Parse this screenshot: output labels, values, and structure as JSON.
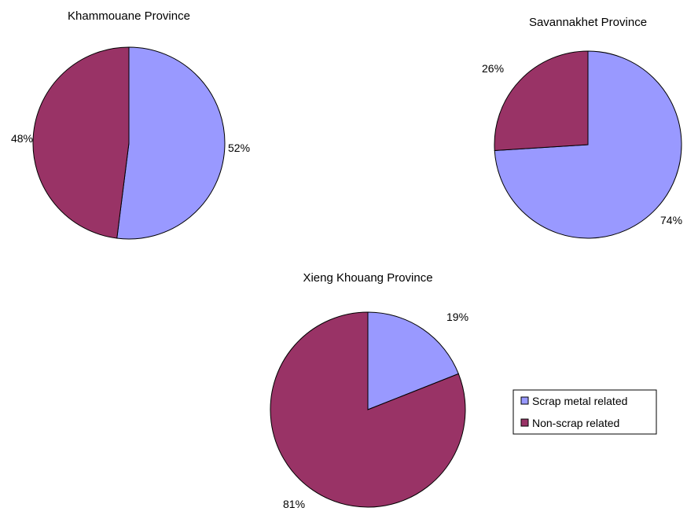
{
  "colors": {
    "scrap": "#9999ff",
    "non_scrap": "#993366",
    "outline": "#000000"
  },
  "legend": {
    "placement": "bottom-right",
    "items": [
      {
        "label": "Scrap metal related",
        "color": "#9999ff"
      },
      {
        "label": "Non-scrap related",
        "color": "#993366"
      }
    ]
  },
  "chart_data": [
    {
      "type": "pie",
      "title": "Khammouane Province",
      "categories": [
        "Scrap metal related",
        "Non-scrap related"
      ],
      "values": [
        52,
        48
      ],
      "labels": [
        "52%",
        "48%"
      ]
    },
    {
      "type": "pie",
      "title": "Savannakhet Province",
      "categories": [
        "Scrap metal related",
        "Non-scrap related"
      ],
      "values": [
        74,
        26
      ],
      "labels": [
        "74%",
        "26%"
      ]
    },
    {
      "type": "pie",
      "title": "Xieng Khouang Province",
      "categories": [
        "Scrap metal related",
        "Non-scrap related"
      ],
      "values": [
        19,
        81
      ],
      "labels": [
        "19%",
        "81%"
      ]
    }
  ]
}
